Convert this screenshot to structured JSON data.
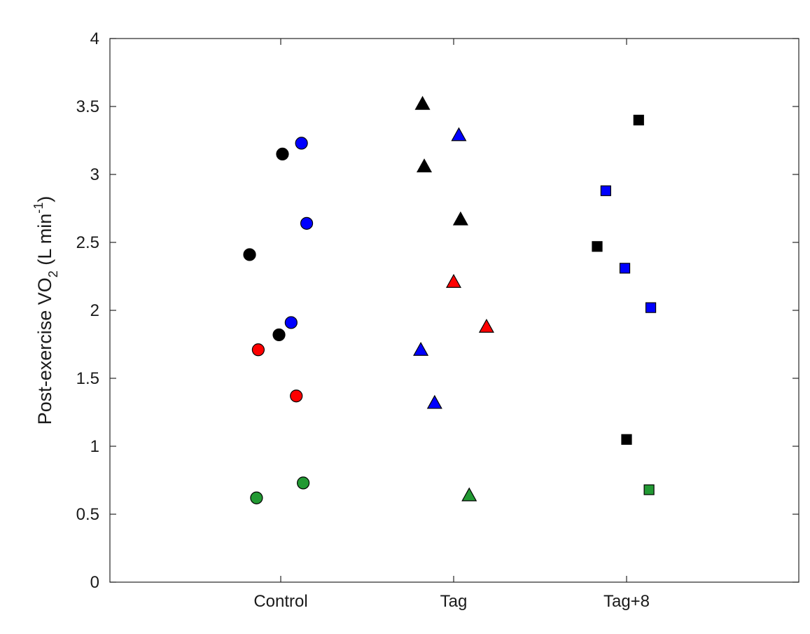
{
  "chart_data": {
    "type": "scatter",
    "title": "",
    "xlabel": "",
    "ylabel": {
      "prefix": "Post-exercise VO",
      "sub": "2",
      "unit_open": " (L min",
      "sup": "-1",
      "unit_close": ")"
    },
    "categories": [
      "Control",
      "Tag",
      "Tag+8"
    ],
    "ylim": [
      0,
      4
    ],
    "yticks": [
      "0",
      "0.5",
      "1",
      "1.5",
      "2",
      "2.5",
      "3",
      "3.5",
      "4"
    ],
    "grid": false,
    "legend": "none",
    "colors": {
      "black": "#000000",
      "blue": "#0000ff",
      "red": "#ff0000",
      "green": "#229933"
    },
    "markers": {
      "Control": "circle",
      "Tag": "triangle",
      "Tag+8": "square"
    },
    "points": [
      {
        "category": "Control",
        "x": -0.18,
        "y": 2.41,
        "color": "black"
      },
      {
        "category": "Control",
        "x": 0.01,
        "y": 3.15,
        "color": "black"
      },
      {
        "category": "Control",
        "x": -0.01,
        "y": 1.82,
        "color": "black"
      },
      {
        "category": "Control",
        "x": 0.12,
        "y": 3.23,
        "color": "blue"
      },
      {
        "category": "Control",
        "x": 0.15,
        "y": 2.64,
        "color": "blue"
      },
      {
        "category": "Control",
        "x": 0.06,
        "y": 1.91,
        "color": "blue"
      },
      {
        "category": "Control",
        "x": -0.13,
        "y": 1.71,
        "color": "red"
      },
      {
        "category": "Control",
        "x": 0.09,
        "y": 1.37,
        "color": "red"
      },
      {
        "category": "Control",
        "x": -0.14,
        "y": 0.62,
        "color": "green"
      },
      {
        "category": "Control",
        "x": 0.13,
        "y": 0.73,
        "color": "green"
      },
      {
        "category": "Tag",
        "x": -0.18,
        "y": 3.52,
        "color": "black"
      },
      {
        "category": "Tag",
        "x": -0.17,
        "y": 3.06,
        "color": "black"
      },
      {
        "category": "Tag",
        "x": 0.04,
        "y": 2.67,
        "color": "black"
      },
      {
        "category": "Tag",
        "x": 0.03,
        "y": 3.29,
        "color": "blue"
      },
      {
        "category": "Tag",
        "x": -0.19,
        "y": 1.71,
        "color": "blue"
      },
      {
        "category": "Tag",
        "x": -0.11,
        "y": 1.32,
        "color": "blue"
      },
      {
        "category": "Tag",
        "x": 0.0,
        "y": 2.21,
        "color": "red"
      },
      {
        "category": "Tag",
        "x": 0.19,
        "y": 1.88,
        "color": "red"
      },
      {
        "category": "Tag",
        "x": 0.09,
        "y": 0.64,
        "color": "green"
      },
      {
        "category": "Tag+8",
        "x": 0.07,
        "y": 3.4,
        "color": "black"
      },
      {
        "category": "Tag+8",
        "x": -0.17,
        "y": 2.47,
        "color": "black"
      },
      {
        "category": "Tag+8",
        "x": 0.0,
        "y": 1.05,
        "color": "black"
      },
      {
        "category": "Tag+8",
        "x": -0.12,
        "y": 2.88,
        "color": "blue"
      },
      {
        "category": "Tag+8",
        "x": -0.01,
        "y": 2.31,
        "color": "blue"
      },
      {
        "category": "Tag+8",
        "x": 0.14,
        "y": 2.02,
        "color": "blue"
      },
      {
        "category": "Tag+8",
        "x": 0.13,
        "y": 0.68,
        "color": "green"
      }
    ]
  }
}
